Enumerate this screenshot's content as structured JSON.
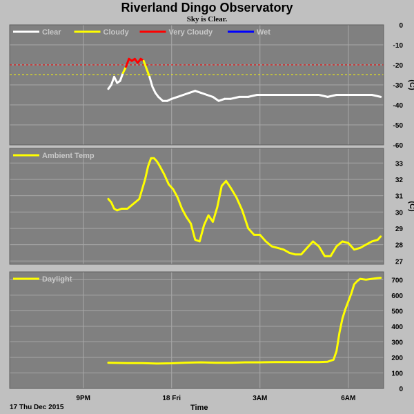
{
  "header": {
    "title": "Riverland Dingo Observatory",
    "subtitle": "Sky is Clear."
  },
  "footer": {
    "date": "17 Thu Dec 2015",
    "xlabel": "Time"
  },
  "colors": {
    "panel_bg": "#808080",
    "grid": "#a8a8a8",
    "clear": "#ffffff",
    "cloudy": "#ffff00",
    "very_cloudy": "#ff0000",
    "wet": "#0000ff",
    "series": "#ffff00"
  },
  "chart_data": [
    {
      "type": "line",
      "panel": "sky",
      "ylabel": "(C)",
      "ylim": [
        -60,
        0
      ],
      "yticks": [
        0,
        -10,
        -20,
        -30,
        -40,
        -50,
        -60
      ],
      "xlim": [
        18.5,
        31.2
      ],
      "xticks": [
        {
          "x": 21,
          "label": "9PM"
        },
        {
          "x": 24,
          "label": "18 Fri"
        },
        {
          "x": 27,
          "label": "3AM"
        },
        {
          "x": 30,
          "label": "6AM"
        }
      ],
      "grid": true,
      "legend": [
        {
          "name": "Clear",
          "color": "#ffffff"
        },
        {
          "name": "Cloudy",
          "color": "#ffff00"
        },
        {
          "name": "Very Cloudy",
          "color": "#ff0000"
        },
        {
          "name": "Wet",
          "color": "#0000ff"
        }
      ],
      "thresholds": [
        {
          "value": -20,
          "color": "#ff0000"
        },
        {
          "value": -25,
          "color": "#ffff00"
        }
      ],
      "series": [
        {
          "x": [
            21.85,
            21.95,
            22.05,
            22.15,
            22.25,
            22.35,
            22.45,
            22.55,
            22.65,
            22.75,
            22.85,
            22.95,
            23.05,
            23.15,
            23.25,
            23.35,
            23.45,
            23.55,
            23.7,
            23.85,
            24.0,
            24.2,
            24.4,
            24.6,
            24.8,
            25.0,
            25.2,
            25.4,
            25.6,
            25.8,
            26.0,
            26.3,
            26.6,
            26.9,
            27.2,
            27.5,
            27.8,
            28.1,
            28.4,
            28.7,
            29.0,
            29.3,
            29.6,
            29.9,
            30.2,
            30.5,
            30.8,
            31.1
          ],
          "values": [
            -32,
            -30,
            -26,
            -29,
            -28,
            -24,
            -21,
            -17,
            -18,
            -17,
            -19,
            -17,
            -18,
            -22,
            -26,
            -31,
            -34,
            -36,
            -38,
            -38,
            -37,
            -36,
            -35,
            -34,
            -33,
            -34,
            -35,
            -36,
            -38,
            -37,
            -37,
            -36,
            -36,
            -35,
            -35,
            -35,
            -35,
            -35,
            -35,
            -35,
            -35,
            -36,
            -35,
            -35,
            -35,
            -35,
            -35,
            -36
          ]
        }
      ]
    },
    {
      "type": "line",
      "panel": "ambient",
      "ylabel": "(C)",
      "ylim": [
        26.8,
        33.9
      ],
      "yticks": [
        27,
        28,
        29,
        30,
        31,
        32,
        33
      ],
      "xlim": [
        18.5,
        31.2
      ],
      "grid": true,
      "legend": [
        {
          "name": "Ambient Temp",
          "color": "#ffff00"
        }
      ],
      "series": [
        {
          "name": "Ambient Temp",
          "x": [
            21.85,
            21.95,
            22.05,
            22.15,
            22.3,
            22.5,
            22.7,
            22.9,
            23.1,
            23.2,
            23.3,
            23.4,
            23.5,
            23.6,
            23.75,
            23.9,
            24.05,
            24.2,
            24.35,
            24.5,
            24.65,
            24.8,
            24.95,
            25.1,
            25.25,
            25.4,
            25.55,
            25.7,
            25.85,
            26.0,
            26.2,
            26.4,
            26.6,
            26.8,
            27.0,
            27.2,
            27.4,
            27.6,
            27.8,
            28.0,
            28.2,
            28.4,
            28.6,
            28.8,
            29.0,
            29.2,
            29.4,
            29.6,
            29.8,
            30.0,
            30.2,
            30.4,
            30.6,
            30.8,
            31.0,
            31.1
          ],
          "values": [
            30.8,
            30.6,
            30.2,
            30.1,
            30.2,
            30.2,
            30.5,
            30.8,
            32.0,
            32.8,
            33.3,
            33.3,
            33.1,
            32.8,
            32.3,
            31.7,
            31.4,
            30.9,
            30.2,
            29.7,
            29.3,
            28.3,
            28.2,
            29.2,
            29.8,
            29.4,
            30.3,
            31.6,
            31.9,
            31.5,
            30.9,
            30.1,
            29.0,
            28.6,
            28.6,
            28.2,
            27.9,
            27.8,
            27.7,
            27.5,
            27.4,
            27.4,
            27.8,
            28.2,
            27.9,
            27.3,
            27.3,
            27.9,
            28.2,
            28.1,
            27.7,
            27.8,
            28.0,
            28.2,
            28.3,
            28.5
          ]
        }
      ]
    },
    {
      "type": "line",
      "panel": "daylight",
      "ylabel": "",
      "ylim": [
        0,
        750
      ],
      "yticks": [
        0,
        100,
        200,
        300,
        400,
        500,
        600,
        700
      ],
      "xlim": [
        18.5,
        31.2
      ],
      "grid": true,
      "legend": [
        {
          "name": "Daylight",
          "color": "#ffff00"
        }
      ],
      "series": [
        {
          "name": "Daylight",
          "x": [
            21.85,
            22.5,
            23.0,
            23.5,
            24.0,
            24.5,
            25.0,
            25.5,
            26.0,
            26.5,
            27.0,
            27.5,
            28.0,
            28.5,
            29.0,
            29.3,
            29.5,
            29.6,
            29.7,
            29.8,
            29.9,
            30.0,
            30.1,
            30.2,
            30.3,
            30.4,
            30.6,
            30.8,
            31.0,
            31.1
          ],
          "values": [
            165,
            163,
            163,
            160,
            162,
            166,
            168,
            165,
            165,
            168,
            168,
            170,
            170,
            170,
            170,
            172,
            185,
            240,
            360,
            450,
            510,
            560,
            610,
            670,
            690,
            705,
            700,
            705,
            710,
            712
          ]
        }
      ]
    }
  ]
}
